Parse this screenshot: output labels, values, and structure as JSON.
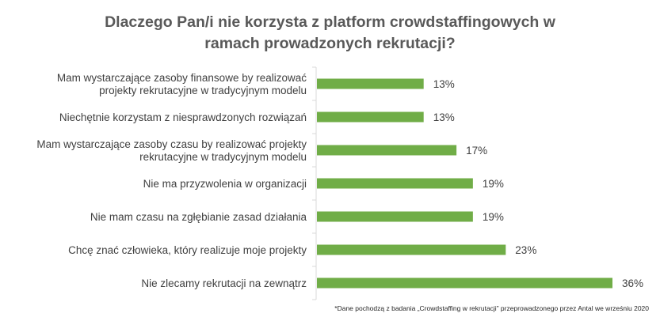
{
  "chart_data": {
    "type": "bar",
    "orientation": "horizontal",
    "title_lines": [
      "Dlaczego Pan/i nie korzysta z platform crowdstaffingowych w",
      "ramach prowadzonych rekrutacji?"
    ],
    "categories": [
      [
        "Mam wystarczające zasoby finansowe by realizować",
        "projekty rekrutacyjne w tradycyjnym modelu"
      ],
      [
        "Niechętnie korzystam z niesprawdzonych rozwiązań"
      ],
      [
        "Mam wystarczające zasoby czasu by realizować projekty",
        "rekrutacyjne w tradycyjnym modelu"
      ],
      [
        "Nie ma przyzwolenia w organizacji"
      ],
      [
        "Nie mam czasu na zgłębianie zasad działania"
      ],
      [
        "Chcę znać człowieka, który realizuje moje projekty"
      ],
      [
        "Nie zlecamy rekrutacji na zewnątrz"
      ]
    ],
    "values": [
      13,
      13,
      17,
      19,
      19,
      23,
      36
    ],
    "value_labels": [
      "13%",
      "13%",
      "17%",
      "19%",
      "19%",
      "23%",
      "36%"
    ],
    "unit": "%",
    "xlim": [
      0,
      36
    ],
    "grid": false,
    "bar_color": "#70AD47",
    "footnote": "*Dane pochodzą z badania „Crowdstaffing w rekrutacji” przeprowadzonego przez Antal we wrześniu 2020"
  }
}
